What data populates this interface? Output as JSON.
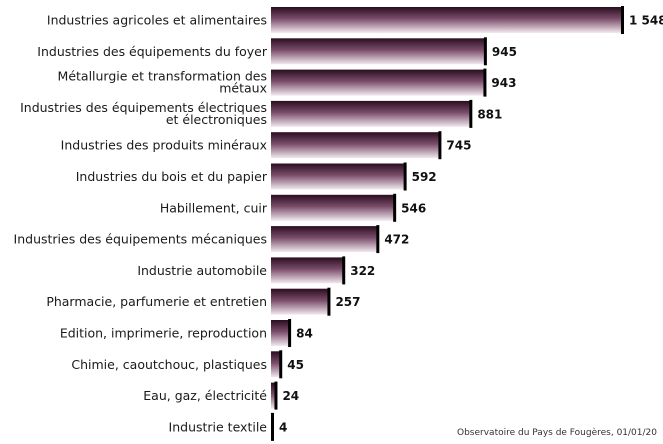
{
  "chart_data": {
    "type": "bar",
    "orientation": "horizontal",
    "categories": [
      "Industries agricoles et alimentaires",
      "Industries des équipements du foyer",
      "Métallurgie et transformation des métaux",
      "Industries des équipements électriques et électroniques",
      "Industries des produits minéraux",
      "Industries du bois et du papier",
      "Habillement, cuir",
      "Industries des équipements mécaniques",
      "Industrie automobile",
      "Pharmacie, parfumerie et entretien",
      "Edition, imprimerie, reproduction",
      "Chimie, caoutchouc, plastiques",
      "Eau, gaz, électricité",
      "Industrie textile"
    ],
    "category_lines": [
      [
        "Industries agricoles et alimentaires"
      ],
      [
        "Industries des équipements du foyer"
      ],
      [
        "Métallurgie et transformation des",
        "métaux"
      ],
      [
        "Industries des équipements électriques",
        "et électroniques"
      ],
      [
        "Industries des produits minéraux"
      ],
      [
        "Industries du bois et du papier"
      ],
      [
        "Habillement, cuir"
      ],
      [
        "Industries des équipements mécaniques"
      ],
      [
        "Industrie automobile"
      ],
      [
        "Pharmacie, parfumerie et entretien"
      ],
      [
        "Edition, imprimerie, reproduction"
      ],
      [
        "Chimie, caoutchouc, plastiques"
      ],
      [
        "Eau, gaz, électricité"
      ],
      [
        "Industrie textile"
      ]
    ],
    "values": [
      1548,
      945,
      943,
      881,
      745,
      592,
      546,
      472,
      322,
      257,
      84,
      45,
      24,
      4
    ],
    "value_labels": [
      "1 548",
      "945",
      "943",
      "881",
      "745",
      "592",
      "546",
      "472",
      "322",
      "257",
      "84",
      "45",
      "24",
      "4"
    ],
    "xlim": [
      0,
      1548
    ],
    "grid": false,
    "colors": {
      "bar_dark": "#2a0d1f",
      "bar_mid": "#7a4d6a",
      "bar_light": "#f3eaf0",
      "bar_edge": "#000000"
    }
  },
  "source_note": "Observatoire du Pays de Fougères, 01/01/20"
}
